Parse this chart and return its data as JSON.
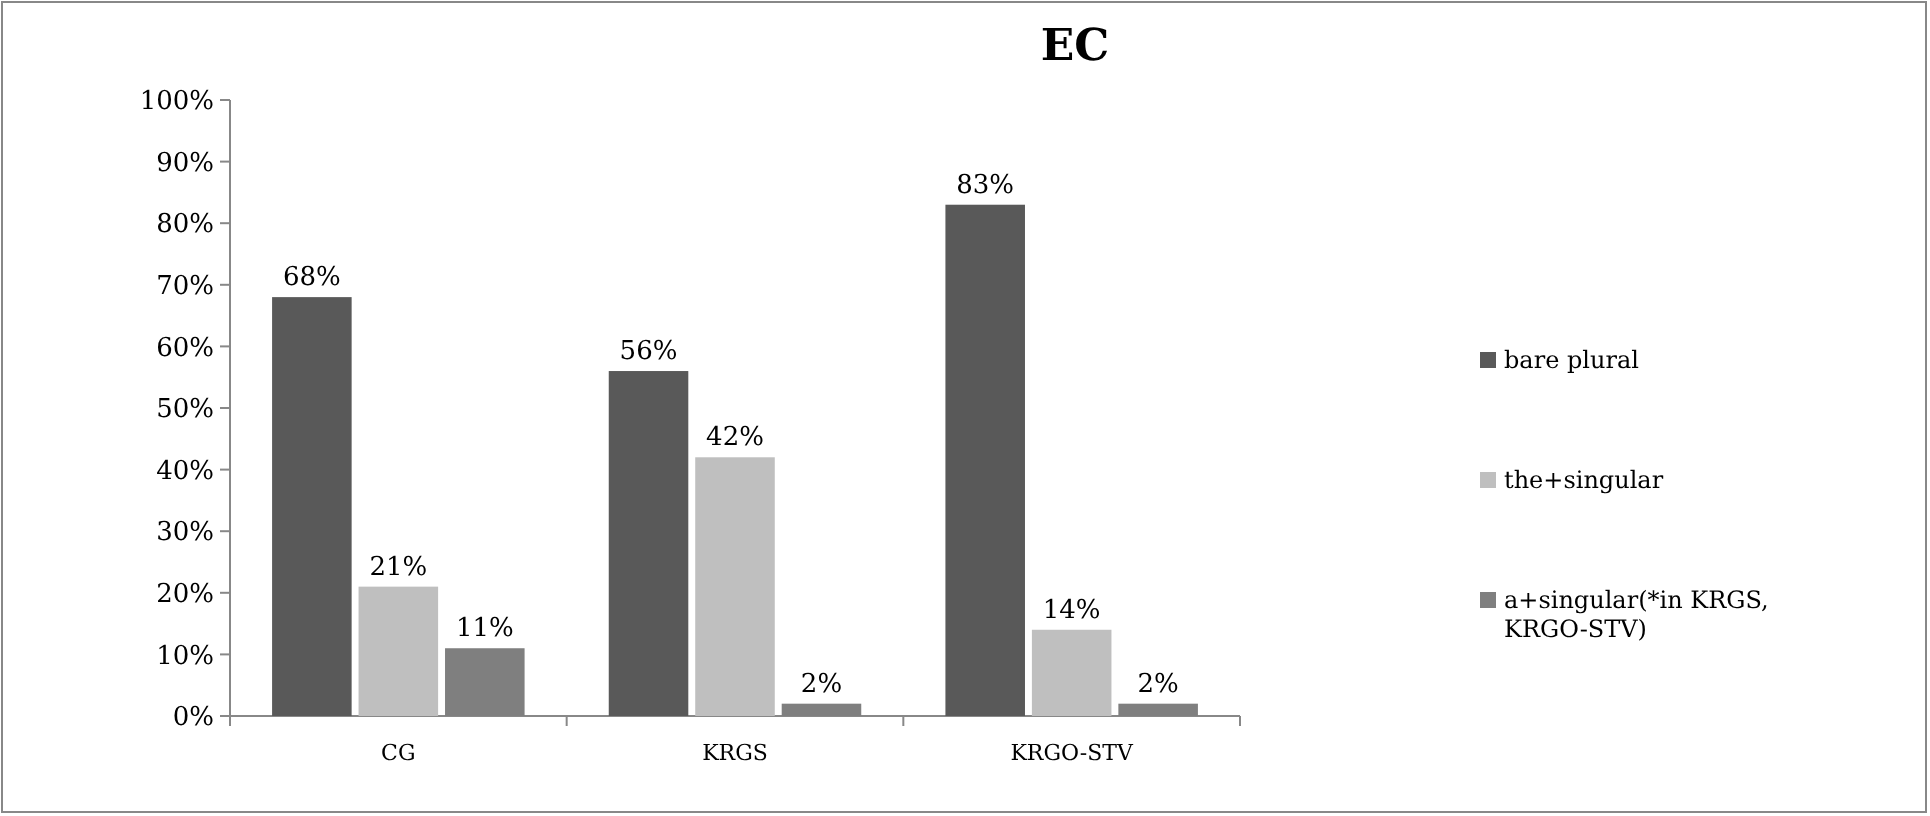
{
  "chart_data": {
    "type": "bar",
    "title": "EC",
    "categories": [
      "CG",
      "KRGS",
      "KRGO-STV"
    ],
    "series": [
      {
        "name": "bare plural",
        "color": "#595959",
        "values": [
          68,
          56,
          83
        ],
        "value_labels": [
          "68%",
          "56%",
          "83%"
        ]
      },
      {
        "name": "the+singular",
        "color": "#bfbfbf",
        "values": [
          21,
          42,
          14
        ],
        "value_labels": [
          "21%",
          "42%",
          "14%"
        ]
      },
      {
        "name": "a+singular(*in KRGS, KRGO-STV)",
        "color": "#7f7f7f",
        "values": [
          11,
          2,
          2
        ],
        "value_labels": [
          "11%",
          "2%",
          "2%"
        ]
      }
    ],
    "ylim": [
      0,
      100
    ],
    "yticks": [
      {
        "value": 0,
        "label": "0%"
      },
      {
        "value": 10,
        "label": "10%"
      },
      {
        "value": 20,
        "label": "20%"
      },
      {
        "value": 30,
        "label": "30%"
      },
      {
        "value": 40,
        "label": "40%"
      },
      {
        "value": 50,
        "label": "50%"
      },
      {
        "value": 60,
        "label": "60%"
      },
      {
        "value": 70,
        "label": "70%"
      },
      {
        "value": 80,
        "label": "80%"
      },
      {
        "value": 90,
        "label": "90%"
      },
      {
        "value": 100,
        "label": "100%"
      }
    ],
    "grid": false,
    "legend": "right"
  }
}
